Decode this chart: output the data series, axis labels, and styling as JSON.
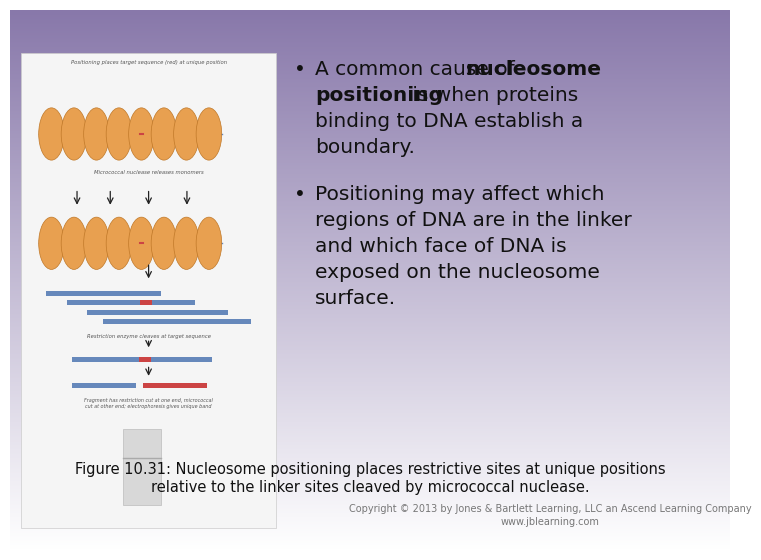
{
  "bg_top_color": "#8878aa",
  "bg_bottom_color": "#ffffff",
  "diagram_box_color": "#f5f5f5",
  "diagram_box_edge": "#cccccc",
  "coil_face": "#e8a050",
  "coil_edge": "#c07828",
  "dna_color": "#6688bb",
  "dna_red": "#cc4444",
  "arrow_color": "#222222",
  "gel_color": "#d8d8d8",
  "gel_band_color": "#aaaaaa",
  "text_color": "#111111",
  "caption_color": "#111111",
  "copyright_color": "#777777",
  "figure_caption_line1": "Figure 10.31: Nucleosome positioning places restrictive sites at unique positions",
  "figure_caption_line2": "relative to the linker sites cleaved by micrococcal nuclease.",
  "copyright_line1": "Copyright © 2013 by Jones & Bartlett Learning, LLC an Ascend Learning Company",
  "copyright_line2": "www.jblearning.com",
  "diag_label_top": "Positioning places target sequence (red) at unique position",
  "diag_label_mid": "Micrococcal nuclease releases monomers",
  "diag_label_restr": "Restriction enzyme cleaves at target sequence",
  "diag_label_frag": "Fragment has restriction cut at one end, micrococcal\ncut at other end; electrophoresis gives unique band"
}
